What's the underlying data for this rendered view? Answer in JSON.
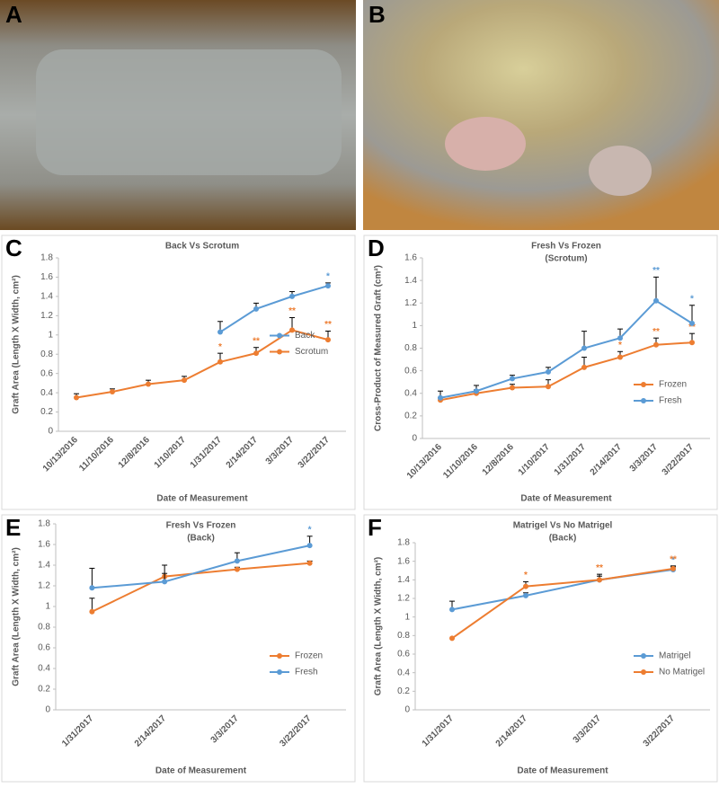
{
  "photos": [
    {
      "panel_label": "A"
    },
    {
      "panel_label": "B"
    }
  ],
  "chart_data": [
    {
      "type": "line",
      "panel_label": "C",
      "title": "Back Vs Scrotum",
      "x_label": "Date of Measurement",
      "y_label": "Graft Area  (Length X Width, cm²)",
      "categories": [
        "10/13/2016",
        "11/10/2016",
        "12/8/2016",
        "1/10/2017",
        "1/31/2017",
        "2/14/2017",
        "3/3/2017",
        "3/22/2017"
      ],
      "series": [
        {
          "name": "Back",
          "color": "#5b9bd5",
          "values": [
            null,
            null,
            null,
            null,
            1.03,
            1.27,
            1.4,
            1.51
          ],
          "errors": [
            null,
            null,
            null,
            null,
            0.11,
            0.06,
            0.05,
            0.03
          ],
          "annotations": [
            null,
            null,
            null,
            null,
            null,
            null,
            null,
            "*"
          ]
        },
        {
          "name": "Scrotum",
          "color": "#ed7d31",
          "values": [
            0.35,
            0.41,
            0.49,
            0.53,
            0.72,
            0.81,
            1.05,
            0.95
          ],
          "errors": [
            0.04,
            0.03,
            0.04,
            0.04,
            0.09,
            0.06,
            0.13,
            0.09
          ],
          "annotations": [
            null,
            null,
            null,
            null,
            "*",
            "**",
            "**",
            "**"
          ]
        }
      ],
      "ylim": [
        0,
        1.8
      ],
      "yticks": [
        0,
        0.2,
        0.4,
        0.6,
        0.8,
        1,
        1.2,
        1.4,
        1.6,
        1.8
      ],
      "legend_position": "center right"
    },
    {
      "type": "line",
      "panel_label": "D",
      "title": "Fresh Vs Frozen",
      "subtitle": "(Scrotum)",
      "x_label": "Date of Measurement",
      "y_label": "Cross-Product of Measured Graft  (cm²)",
      "categories": [
        "10/13/2016",
        "11/10/2016",
        "12/8/2016",
        "1/10/2017",
        "1/31/2017",
        "2/14/2017",
        "3/3/2017",
        "3/22/2017"
      ],
      "series": [
        {
          "name": "Frozen",
          "color": "#ed7d31",
          "values": [
            0.34,
            0.4,
            0.45,
            0.46,
            0.63,
            0.72,
            0.83,
            0.85
          ],
          "errors": [
            0.02,
            0.03,
            0.03,
            0.06,
            0.09,
            0.05,
            0.06,
            0.08
          ],
          "annotations": [
            null,
            null,
            null,
            null,
            null,
            "*",
            "**",
            "**"
          ]
        },
        {
          "name": "Fresh",
          "color": "#5b9bd5",
          "values": [
            0.36,
            0.42,
            0.53,
            0.59,
            0.8,
            0.89,
            1.22,
            1.02
          ],
          "errors": [
            0.06,
            0.05,
            0.03,
            0.04,
            0.15,
            0.08,
            0.21,
            0.16
          ],
          "annotations": [
            null,
            null,
            null,
            null,
            null,
            null,
            "**",
            "*"
          ]
        }
      ],
      "ylim": [
        0,
        1.6
      ],
      "yticks": [
        0,
        0.2,
        0.4,
        0.6,
        0.8,
        1,
        1.2,
        1.4,
        1.6
      ],
      "legend_position": "lower right"
    },
    {
      "type": "line",
      "panel_label": "E",
      "title": "Fresh Vs Frozen",
      "subtitle": "(Back)",
      "x_label": "Date of Measurement",
      "y_label": "Graft Area  (Length X Width, cm²)",
      "categories": [
        "1/31/2017",
        "2/14/2017",
        "3/3/2017",
        "3/22/2017"
      ],
      "series": [
        {
          "name": "Frozen",
          "color": "#ed7d31",
          "values": [
            0.95,
            1.29,
            1.36,
            1.42
          ],
          "errors": [
            0.13,
            0.03,
            0.02,
            0.02
          ],
          "annotations": [
            null,
            null,
            null,
            null
          ]
        },
        {
          "name": "Fresh",
          "color": "#5b9bd5",
          "values": [
            1.18,
            1.24,
            1.44,
            1.59
          ],
          "errors": [
            0.19,
            0.16,
            0.08,
            0.09
          ],
          "annotations": [
            null,
            null,
            null,
            "*"
          ]
        }
      ],
      "ylim": [
        0,
        1.8
      ],
      "yticks": [
        0,
        0.2,
        0.4,
        0.6,
        0.8,
        1,
        1.2,
        1.4,
        1.6,
        1.8
      ],
      "legend_position": "lower right"
    },
    {
      "type": "line",
      "panel_label": "F",
      "title": "Matrigel Vs No Matrigel",
      "subtitle": "(Back)",
      "x_label": "Date of Measurement",
      "y_label": "Graft Area  (Length X Width, cm²)",
      "categories": [
        "1/31/2017",
        "2/14/2017",
        "3/3/2017",
        "3/22/2017"
      ],
      "series": [
        {
          "name": "Matrigel",
          "color": "#5b9bd5",
          "values": [
            1.08,
            1.23,
            1.4,
            1.51
          ],
          "errors": [
            0.09,
            0.03,
            0.04,
            0.03
          ],
          "annotations": [
            null,
            null,
            null,
            "*"
          ]
        },
        {
          "name": "No Matrigel",
          "color": "#ed7d31",
          "values": [
            0.77,
            1.33,
            1.4,
            1.52
          ],
          "errors": [
            null,
            0.05,
            0.06,
            0.03
          ],
          "annotations": [
            null,
            "*",
            "**",
            "**"
          ]
        }
      ],
      "ylim": [
        0,
        1.8
      ],
      "yticks": [
        0,
        0.2,
        0.4,
        0.6,
        0.8,
        1,
        1.2,
        1.4,
        1.6,
        1.8
      ],
      "legend_position": "lower right"
    }
  ]
}
